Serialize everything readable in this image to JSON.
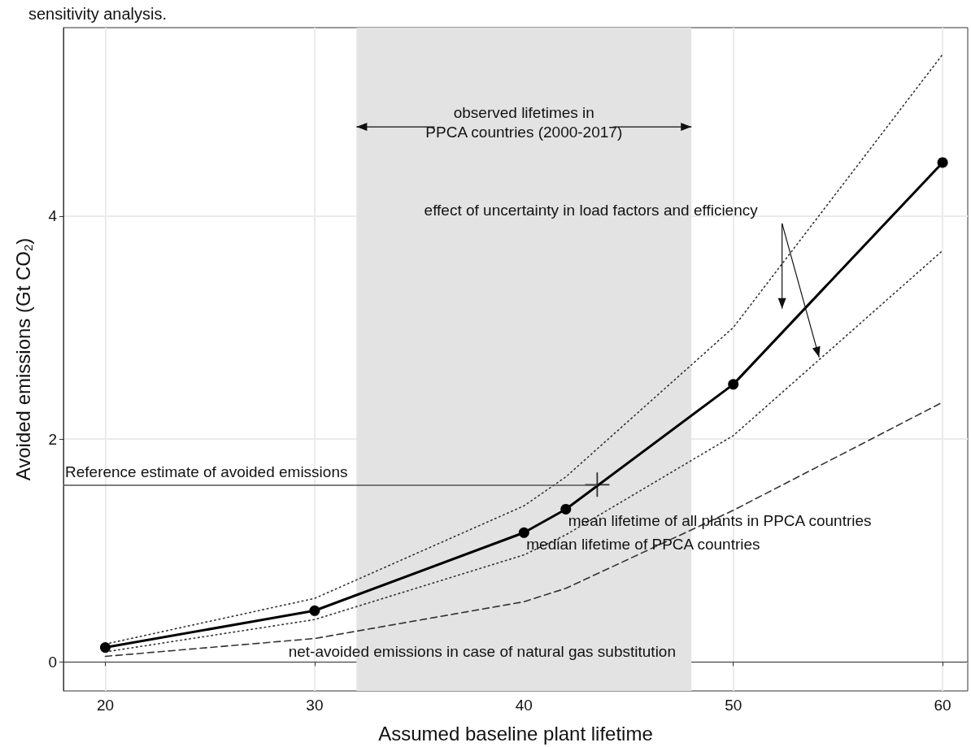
{
  "chart_data": {
    "type": "line",
    "title": "sensitivity analysis.",
    "xlabel": "Assumed baseline plant lifetime",
    "ylabel": "Avoided emissions (Gt CO$_{2}$)",
    "x": [
      20,
      30,
      40,
      42,
      50,
      60
    ],
    "series": [
      {
        "color": "#000000",
        "values": [
          0.13,
          0.46,
          1.16,
          1.37,
          2.49,
          4.48
        ],
        "marker": "circle",
        "line_style": "solid"
      },
      {
        "color": "#333333",
        "values": [
          0.16,
          0.57,
          1.4,
          1.66,
          3.0,
          5.45
        ],
        "marker": "none",
        "line_style": "dotted"
      },
      {
        "color": "#333333",
        "values": [
          0.09,
          0.38,
          0.96,
          1.14,
          2.03,
          3.69
        ],
        "marker": "none",
        "line_style": "dotted"
      },
      {
        "color": "#333333",
        "values": [
          0.05,
          0.21,
          0.54,
          0.66,
          1.36,
          2.33
        ],
        "marker": "none",
        "line_style": "dashed"
      },
      {
        "type": "scatter",
        "color": "#000000",
        "x": [
          43.5
        ],
        "values": [
          1.59
        ],
        "marker": "cross"
      }
    ],
    "xlim": [
      18,
      61.2
    ],
    "ylim": [
      -0.26,
      5.69
    ],
    "xticks": [
      20,
      30,
      40,
      50,
      60
    ],
    "yticks": [
      0,
      2,
      4
    ],
    "grid": true,
    "ref_lines": [
      {
        "axis": "y",
        "value": 1.59,
        "label": "Reference estimate of avoided emissions",
        "color": "#555555"
      }
    ],
    "bands": [
      {
        "axis": "x",
        "from": 32,
        "to": 48,
        "label": "observed lifetimes in\nPPCA countries (2000-2017)",
        "color": "#e3e3e3"
      }
    ],
    "annotations": [
      {
        "text": "mean lifetime of all plants in PPCA countries",
        "x": 42,
        "y": 1.37
      },
      {
        "text": "median lifetime of PPCA countries",
        "x": 40,
        "y": 1.16
      },
      "effect of uncertainty in load factors and efficiency",
      "net-avoided emissions in case of natural gas substitution"
    ]
  }
}
